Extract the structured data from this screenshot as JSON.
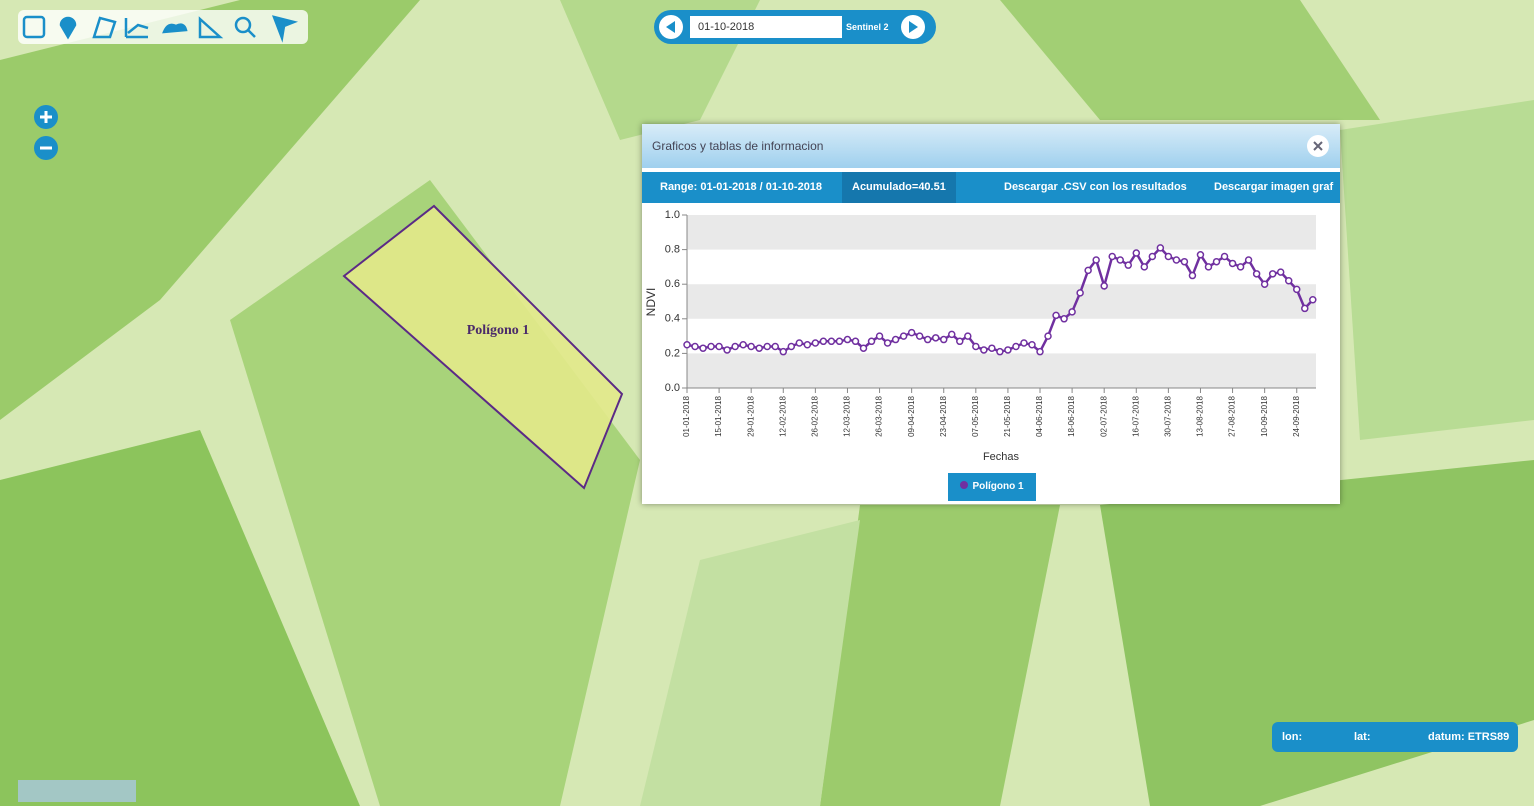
{
  "date_selector": {
    "date": "01-10-2018",
    "source": "Sentinel 2"
  },
  "map": {
    "polygon_label": "Polígono 1"
  },
  "panel": {
    "title": "Graficos y tablas de informacion",
    "range": "Range: 01-01-2018 / 01-10-2018",
    "accumulated": "Acumulado=40.51",
    "download_csv": "Descargar .CSV con los resultados",
    "download_image": "Descargar imagen graf"
  },
  "coordinates": {
    "lon": "lon:",
    "lat": "lat:",
    "datum": "datum: ETRS89"
  },
  "chart_data": {
    "type": "line",
    "ylabel": "NDVI",
    "xlabel": "Fechas",
    "categories": [
      "01-01-2018",
      null,
      null,
      null,
      "15-01-2018",
      null,
      null,
      null,
      "29-01-2018",
      null,
      null,
      null,
      "12-02-2018",
      null,
      null,
      null,
      "26-02-2018",
      null,
      null,
      null,
      "12-03-2018",
      null,
      null,
      null,
      "26-03-2018",
      null,
      null,
      null,
      "09-04-2018",
      null,
      null,
      null,
      "23-04-2018",
      null,
      null,
      null,
      "07-05-2018",
      null,
      null,
      null,
      "21-05-2018",
      null,
      null,
      null,
      "04-06-2018",
      null,
      null,
      null,
      "18-06-2018",
      null,
      null,
      null,
      "02-07-2018",
      null,
      null,
      null,
      "16-07-2018",
      null,
      null,
      null,
      "30-07-2018",
      null,
      null,
      null,
      "13-08-2018",
      null,
      null,
      null,
      "27-08-2018",
      null,
      null,
      null,
      "10-09-2018",
      null,
      null,
      null,
      "24-09-2018",
      null,
      null
    ],
    "series": [
      {
        "name": "Polígono 1",
        "color": "#7030a0",
        "values": [
          0.25,
          0.24,
          0.23,
          0.24,
          0.24,
          0.22,
          0.24,
          0.25,
          0.24,
          0.23,
          0.24,
          0.24,
          0.21,
          0.24,
          0.26,
          0.25,
          0.26,
          0.27,
          0.27,
          0.27,
          0.28,
          0.27,
          0.23,
          0.27,
          0.3,
          0.26,
          0.28,
          0.3,
          0.32,
          0.3,
          0.28,
          0.29,
          0.28,
          0.31,
          0.27,
          0.3,
          0.24,
          0.22,
          0.23,
          0.21,
          0.22,
          0.24,
          0.26,
          0.25,
          0.21,
          0.3,
          0.42,
          0.4,
          0.44,
          0.55,
          0.68,
          0.74,
          0.59,
          0.76,
          0.74,
          0.71,
          0.78,
          0.7,
          0.76,
          0.81,
          0.76,
          0.74,
          0.73,
          0.65,
          0.77,
          0.7,
          0.73,
          0.76,
          0.72,
          0.7,
          0.74,
          0.66,
          0.6,
          0.66,
          0.67,
          0.62,
          0.57,
          0.46,
          0.51
        ]
      }
    ],
    "ylim": [
      0,
      1
    ],
    "yticks": [
      {
        "value": 0,
        "label": "0.0"
      },
      0.2,
      0.4,
      0.6,
      0.8,
      {
        "value": 1,
        "label": "1.0"
      }
    ],
    "grid": true
  }
}
